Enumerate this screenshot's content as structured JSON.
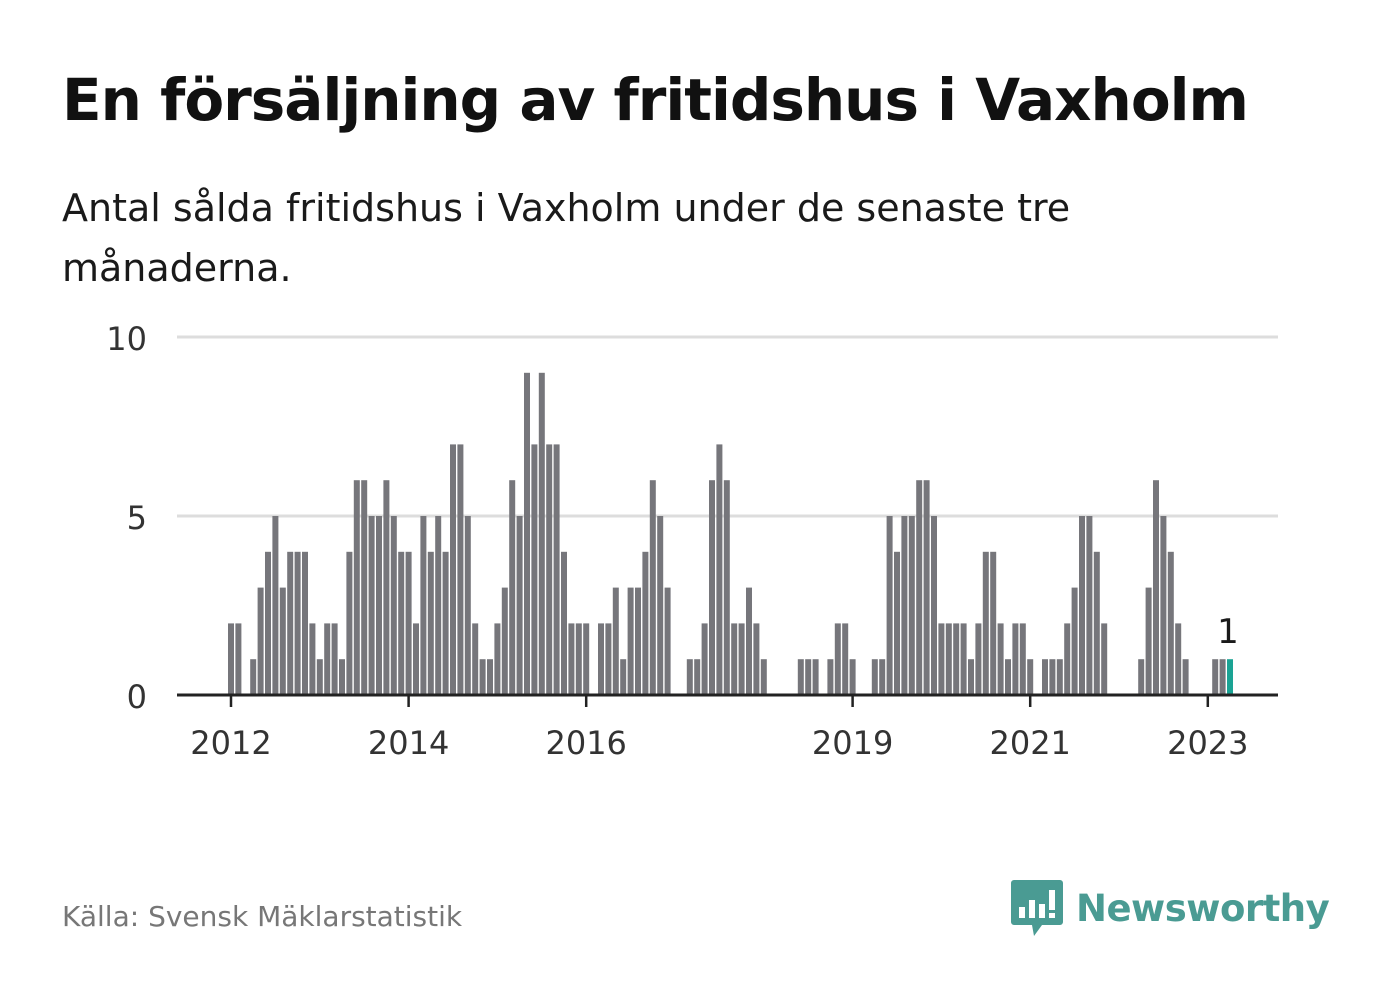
{
  "header": {
    "title": "En försäljning av fritidshus i Vaxholm",
    "subtitle": "Antal sålda fritidshus i Vaxholm under de senaste tre månaderna."
  },
  "footer": {
    "source": "Källa: Svensk Mäklarstatistik",
    "brand": "Newsworthy"
  },
  "colors": {
    "bar": "#76767b",
    "highlight": "#1aa394",
    "grid": "#dddddd",
    "axis": "#222222",
    "brand": "#4a9b93"
  },
  "icons": {
    "brand": "bar-chart-speech-bubble-icon"
  },
  "chart_data": {
    "type": "bar",
    "title": "",
    "xlabel": "",
    "ylabel": "",
    "ylim": [
      0,
      10
    ],
    "yticks": [
      "0",
      "5",
      "10"
    ],
    "grid": true,
    "x_tick_labels": [
      {
        "label": "2012",
        "index": 0
      },
      {
        "label": "2014",
        "index": 24
      },
      {
        "label": "2016",
        "index": 48
      },
      {
        "label": "2019",
        "index": 84
      },
      {
        "label": "2021",
        "index": 108
      },
      {
        "label": "2023",
        "index": 132
      }
    ],
    "highlight_index": 135,
    "highlight_label": "1",
    "values": [
      2,
      2,
      0,
      1,
      3,
      4,
      5,
      3,
      4,
      4,
      4,
      2,
      1,
      2,
      2,
      1,
      4,
      6,
      6,
      5,
      5,
      6,
      5,
      4,
      4,
      2,
      5,
      4,
      5,
      4,
      7,
      7,
      5,
      2,
      1,
      1,
      2,
      3,
      6,
      5,
      9,
      7,
      9,
      7,
      7,
      4,
      2,
      2,
      2,
      0,
      2,
      2,
      3,
      1,
      3,
      3,
      4,
      6,
      5,
      3,
      0,
      0,
      1,
      1,
      2,
      6,
      7,
      6,
      2,
      2,
      3,
      2,
      1,
      0,
      0,
      0,
      0,
      1,
      1,
      1,
      0,
      1,
      2,
      2,
      1,
      0,
      0,
      1,
      1,
      5,
      4,
      5,
      5,
      6,
      6,
      5,
      2,
      2,
      2,
      2,
      1,
      2,
      4,
      4,
      2,
      1,
      2,
      2,
      1,
      0,
      1,
      1,
      1,
      2,
      3,
      5,
      5,
      4,
      2,
      0,
      0,
      0,
      0,
      1,
      3,
      6,
      5,
      4,
      2,
      1,
      0,
      0,
      0,
      1,
      1,
      1
    ]
  }
}
